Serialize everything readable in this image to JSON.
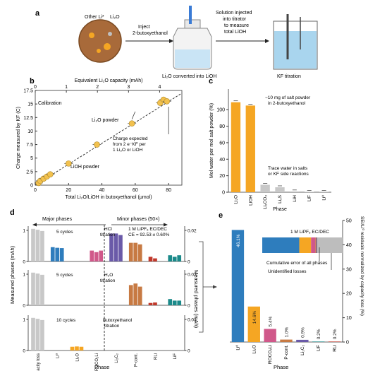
{
  "panel_a": {
    "letter": "a",
    "other_li": "Other Li*",
    "li2o": "Li₂O",
    "step1": [
      "Inject",
      "2-butoxyethanol"
    ],
    "bottle_caption": "Li₂O converted into LiOH",
    "step2": [
      "Solution injected",
      "into titrator",
      "to measure",
      "total LiOH"
    ],
    "titration": "KF titration"
  },
  "panel_b": {
    "letter": "b",
    "top_axis_title": "Equivalent Li₂O capacity (mAh)",
    "calibration": "Calibration",
    "li2o_powder": "Li₂O powder",
    "lioh_powder": "LiOH powder",
    "note": [
      "Charge expected",
      "from 2 e⁻KF per",
      "1 Li₂O or LiOH"
    ]
  },
  "panel_c": {
    "letter": "c",
    "annotation1": [
      "~10 mg of salt powder",
      "in 2-butoxyethanol"
    ],
    "annotation2": [
      "Trace water in salts",
      "or KF side reactions"
    ]
  },
  "panel_d": {
    "letter": "d",
    "major": "Major phases",
    "minor": "Minor phases (50×)",
    "cycles5a": "5 cycles",
    "hcl": [
      "HCl",
      "titration"
    ],
    "electrolyte": [
      "1 M LiPF₆ EC/DEC",
      "CE = 92.53 ± 0.60%"
    ],
    "cycles5b": "5 cycles",
    "h2o": [
      "H₂O",
      "titration"
    ],
    "cycles10": "10 cycles",
    "butoxy": [
      "Butoxyethanol",
      "titration"
    ],
    "ylabel_left": "Measured phases (mAh)",
    "ylabel_right": "Measured phases (mAh)",
    "xlabel": "Phase"
  },
  "panel_e": {
    "letter": "e",
    "inset_title": "1 M LiPF₆ EC/DEC",
    "cumulative": "Cumulative error of all phases",
    "unidentified": "Unidentified losses",
    "ylabel": "SEI/Li⁰ residuals normalized by capacity loss (%)",
    "xlabel": "Phase"
  },
  "chart_data": [
    {
      "panel": "b",
      "type": "scatter",
      "xlabel": "Total Li₂O/LiOH in butoxyethanol (μmol)",
      "ylabel": "Charge measured by KF (C)",
      "x2label": "Equivalent Li₂O capacity (mAh)",
      "xlim": [
        0,
        88
      ],
      "ylim": [
        0,
        17.5
      ],
      "x_ticks": [
        0,
        20,
        40,
        60,
        80
      ],
      "y_ticks": [
        0,
        2.5,
        5,
        7.5,
        10,
        12.5,
        15,
        17.5
      ],
      "x2_ticks": [
        0,
        1,
        2,
        3,
        4
      ],
      "series": [
        {
          "name": "Li₂O powder",
          "points": [
            [
              37,
              7.5
            ],
            [
              58,
              11.4
            ],
            [
              75,
              15.2
            ],
            [
              77,
              15.8
            ],
            [
              79,
              15.5
            ]
          ]
        },
        {
          "name": "LiOH powder",
          "points": [
            [
              2,
              0.4
            ],
            [
              3,
              0.8
            ],
            [
              5,
              1.2
            ],
            [
              7,
              1.6
            ],
            [
              9,
              2.0
            ],
            [
              20,
              4.0
            ]
          ]
        }
      ],
      "expected_line": [
        [
          0,
          0
        ],
        [
          88,
          17.0
        ]
      ]
    },
    {
      "panel": "c",
      "type": "bar",
      "ylabel": "Mol water per mol salt powder (%)",
      "xlabel": "Phase",
      "categories": [
        "Li₂O",
        "LiOH",
        "Li₂CO₃",
        "Li₂S",
        "LiH",
        "LiF",
        "Li⁰"
      ],
      "values": [
        109,
        105,
        9,
        6,
        1,
        0.5,
        0.3
      ],
      "ylim": [
        0,
        125
      ],
      "y_ticks": [
        0,
        20,
        40,
        60,
        80,
        100
      ]
    },
    {
      "panel": "d",
      "type": "bar",
      "ylabel": "Measured phases (mAh)",
      "xlabel": "Phase",
      "categories": [
        "Capacity loss",
        "Li⁰",
        "Li₂O",
        "ROCO₂Li",
        "Li₂C₂",
        "P-cont.",
        "RLi",
        "LiF"
      ],
      "y_left_ticks": [
        0,
        1
      ],
      "y_right_ticks": [
        0,
        0.02
      ],
      "rows": [
        {
          "label": "5 cycles / HCl titration",
          "values": [
            [
              1.05,
              1.02,
              0.98
            ],
            [
              0.46,
              0.44,
              0.43
            ],
            [],
            [
              0.007,
              0.006,
              0.007
            ],
            [
              0.018,
              0.018,
              0.017
            ],
            [
              0.012,
              0.012,
              0.011
            ],
            [
              0.003,
              0.002
            ],
            [
              0.004,
              0.003,
              0.004
            ]
          ]
        },
        {
          "label": "5 cycles / H₂O titration",
          "values": [
            [
              1.05,
              1.02,
              0.98
            ],
            [],
            [],
            [],
            [],
            [
              0.013,
              0.014,
              0.012
            ],
            [
              0.0015,
              0.0018
            ],
            [
              0.004,
              0.003,
              0.003
            ]
          ]
        },
        {
          "label": "10 cycles / Butoxyethanol titration",
          "values": [
            [
              1.05,
              1.02,
              0.98
            ],
            [],
            [
              0.12,
              0.13,
              0.12
            ],
            [],
            [],
            [],
            [],
            []
          ]
        }
      ]
    },
    {
      "panel": "e",
      "type": "bar",
      "ylabel": "SEI/Li⁰ residuals normalized by capacity loss (%)",
      "xlabel": "Phase",
      "categories": [
        "Li⁰",
        "Li₂O",
        "ROCO₂Li",
        "P-cont.",
        "Li₂C₂",
        "LiF",
        "RLi"
      ],
      "values": [
        46.1,
        14.6,
        5.4,
        1.0,
        0.9,
        0.2,
        0.2
      ],
      "labels": [
        "46.1%",
        "14.6%",
        "5.4%",
        "1.0%",
        "0.9%",
        "0.2%",
        "0.2%"
      ],
      "ylim": [
        0,
        50
      ],
      "y_ticks": [
        0,
        10,
        20,
        30,
        40,
        50
      ],
      "inset_stack": [
        46.1,
        14.6,
        5.4,
        1.0,
        0.9,
        0.2,
        0.2,
        31.6
      ]
    }
  ],
  "colors": {
    "orange": "#f5a623",
    "blue": "#2e7dbd",
    "pink": "#d0588a",
    "purple": "#6a5aa8",
    "brown": "#c77a43",
    "red": "#c0392b",
    "teal": "#1b8a8a",
    "gray": "#c8c8c8",
    "yellow_pt": "#f2c14e",
    "dark": "#444"
  }
}
